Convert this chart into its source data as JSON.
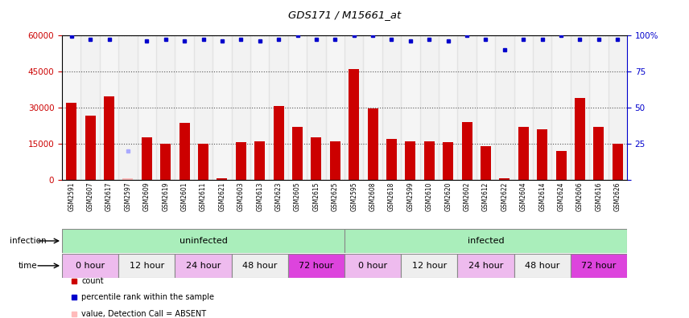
{
  "title": "GDS171 / M15661_at",
  "samples": [
    "GSM2591",
    "GSM2607",
    "GSM2617",
    "GSM2597",
    "GSM2609",
    "GSM2619",
    "GSM2601",
    "GSM2611",
    "GSM2621",
    "GSM2603",
    "GSM2613",
    "GSM2623",
    "GSM2605",
    "GSM2615",
    "GSM2625",
    "GSM2595",
    "GSM2608",
    "GSM2618",
    "GSM2599",
    "GSM2610",
    "GSM2620",
    "GSM2602",
    "GSM2612",
    "GSM2622",
    "GSM2604",
    "GSM2614",
    "GSM2624",
    "GSM2606",
    "GSM2616",
    "GSM2626"
  ],
  "counts": [
    32000,
    26500,
    34500,
    500,
    17500,
    15000,
    23500,
    15000,
    500,
    15500,
    16000,
    30500,
    22000,
    17500,
    16000,
    46000,
    29500,
    17000,
    16000,
    16000,
    15500,
    24000,
    14000,
    500,
    22000,
    21000,
    12000,
    34000,
    22000,
    15000
  ],
  "absent_count_indices": [
    3
  ],
  "absent_rank_indices": [
    3
  ],
  "rank_values": [
    99,
    97,
    97,
    20,
    96,
    97,
    96,
    97,
    96,
    97,
    96,
    97,
    100,
    97,
    97,
    100,
    100,
    97,
    96,
    97,
    96,
    100,
    97,
    90,
    97,
    97,
    100,
    97,
    97,
    97
  ],
  "bar_color": "#cc0000",
  "absent_bar_color": "#ffbbbb",
  "rank_color": "#0000cc",
  "absent_rank_color": "#aaaaff",
  "ylim_left": [
    0,
    60000
  ],
  "ylim_right": [
    0,
    100
  ],
  "yticks_left": [
    0,
    15000,
    30000,
    45000,
    60000
  ],
  "yticks_right": [
    0,
    25,
    50,
    75,
    100
  ],
  "infection_groups": [
    {
      "label": "uninfected",
      "start": 0,
      "end": 14,
      "color": "#aaeebb"
    },
    {
      "label": "infected",
      "start": 15,
      "end": 29,
      "color": "#aaeebb"
    }
  ],
  "time_groups": [
    {
      "label": "0 hour",
      "start": 0,
      "end": 2,
      "color": "#eebbee"
    },
    {
      "label": "12 hour",
      "start": 3,
      "end": 5,
      "color": "#eeeeee"
    },
    {
      "label": "24 hour",
      "start": 6,
      "end": 8,
      "color": "#eebbee"
    },
    {
      "label": "48 hour",
      "start": 9,
      "end": 11,
      "color": "#eeeeee"
    },
    {
      "label": "72 hour",
      "start": 12,
      "end": 14,
      "color": "#dd44dd"
    },
    {
      "label": "0 hour",
      "start": 15,
      "end": 17,
      "color": "#eebbee"
    },
    {
      "label": "12 hour",
      "start": 18,
      "end": 20,
      "color": "#eeeeee"
    },
    {
      "label": "24 hour",
      "start": 21,
      "end": 23,
      "color": "#eebbee"
    },
    {
      "label": "48 hour",
      "start": 24,
      "end": 26,
      "color": "#eeeeee"
    },
    {
      "label": "72 hour",
      "start": 27,
      "end": 29,
      "color": "#dd44dd"
    }
  ],
  "plot_bg_color": "#ffffff",
  "fig_bg_color": "#ffffff",
  "xtick_bg_even": "#dddddd",
  "xtick_bg_odd": "#cccccc"
}
